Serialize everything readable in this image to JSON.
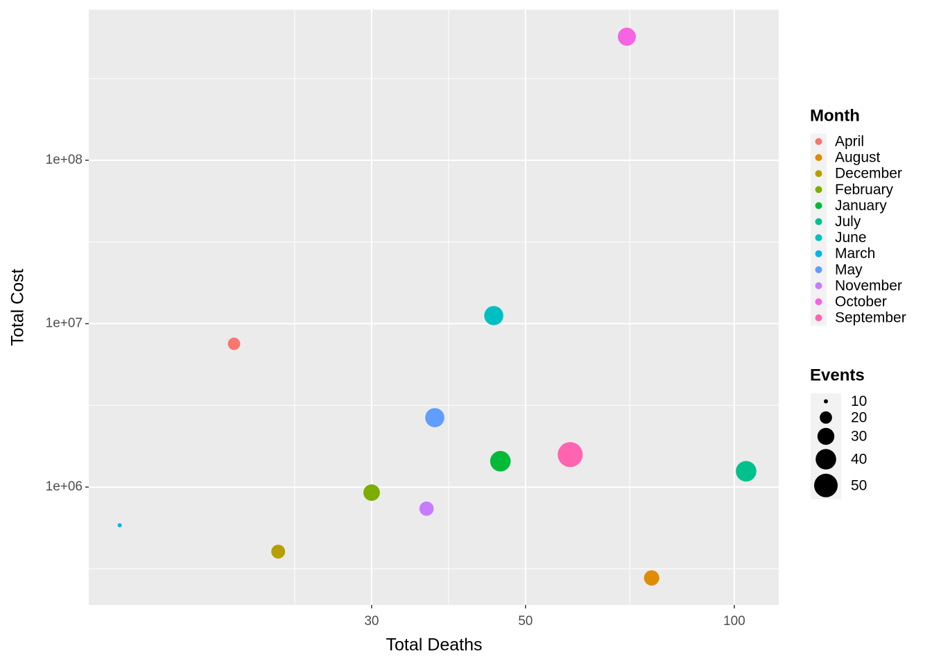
{
  "chart_data": {
    "type": "scatter",
    "x_label": "Total Deaths",
    "y_label": "Total Cost",
    "x_log": true,
    "y_log": true,
    "grid": true,
    "xlim": [
      11.73,
      115.9
    ],
    "ylim": [
      190000,
      834000000
    ],
    "xticks": [
      30,
      50,
      100
    ],
    "yticks": [
      {
        "value": 1000000,
        "label": "1e+06"
      },
      {
        "value": 10000000,
        "label": "1e+07"
      },
      {
        "value": 100000000,
        "label": "1e+08"
      }
    ],
    "legend_title": "Month",
    "series": [
      {
        "name": "April",
        "color": "#F8766D",
        "x": [
          19
        ],
        "values": [
          7530000
        ],
        "sizes": [
          20
        ]
      },
      {
        "name": "August",
        "color": "#DE8C00",
        "x": [
          76
        ],
        "values": [
          278000
        ],
        "sizes": [
          26
        ]
      },
      {
        "name": "December",
        "color": "#B79F00",
        "x": [
          22
        ],
        "values": [
          403000
        ],
        "sizes": [
          23
        ]
      },
      {
        "name": "February",
        "color": "#7CAE00",
        "x": [
          30
        ],
        "values": [
          925000
        ],
        "sizes": [
          29
        ]
      },
      {
        "name": "January",
        "color": "#00BA38",
        "x": [
          46
        ],
        "values": [
          1440000
        ],
        "sizes": [
          40
        ]
      },
      {
        "name": "July",
        "color": "#00C08B",
        "x": [
          104
        ],
        "values": [
          1250000
        ],
        "sizes": [
          40
        ]
      },
      {
        "name": "June",
        "color": "#00BFC4",
        "x": [
          45
        ],
        "values": [
          11200000
        ],
        "sizes": [
          36
        ]
      },
      {
        "name": "March",
        "color": "#00B4F0",
        "x": [
          13
        ],
        "values": [
          584000
        ],
        "sizes": [
          10
        ]
      },
      {
        "name": "May",
        "color": "#619CFF",
        "x": [
          37
        ],
        "values": [
          2660000
        ],
        "sizes": [
          36
        ]
      },
      {
        "name": "November",
        "color": "#C77CFF",
        "x": [
          36
        ],
        "values": [
          738000
        ],
        "sizes": [
          24
        ]
      },
      {
        "name": "October",
        "color": "#F564E3",
        "x": [
          70
        ],
        "values": [
          570000000
        ],
        "sizes": [
          33
        ]
      },
      {
        "name": "September",
        "color": "#FF64B0",
        "x": [
          58
        ],
        "values": [
          1580000
        ],
        "sizes": [
          55
        ]
      }
    ],
    "size_legend": {
      "title": "Events",
      "values": [
        10,
        20,
        30,
        40,
        50
      ]
    }
  }
}
